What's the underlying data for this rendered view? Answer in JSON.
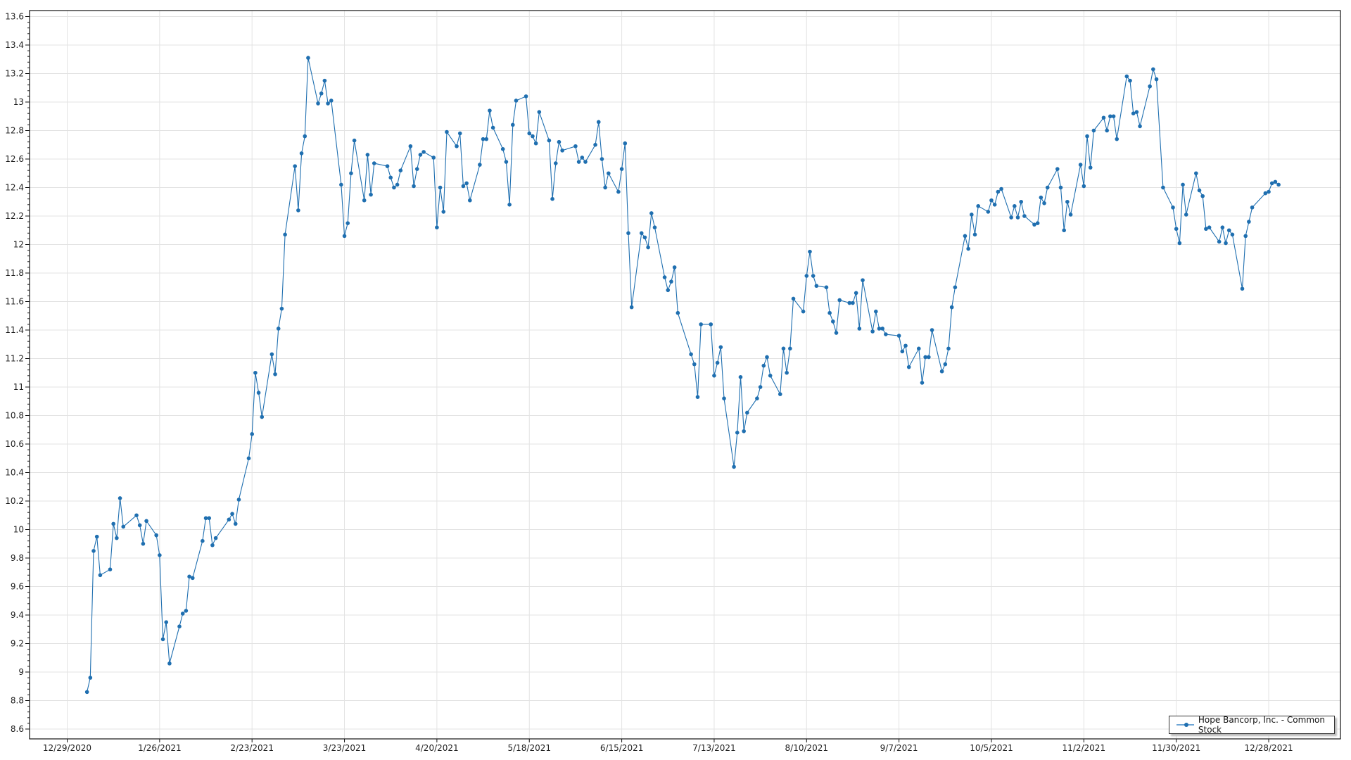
{
  "chart_data": {
    "type": "line",
    "title": "",
    "xlabel": "",
    "ylabel": "",
    "ylim": [
      8.6,
      13.6
    ],
    "y_ticks": [
      "8.6",
      "8.8",
      "9",
      "9.2",
      "9.4",
      "9.6",
      "9.8",
      "10",
      "10.2",
      "10.4",
      "10.6",
      "10.8",
      "11",
      "11.2",
      "11.4",
      "11.6",
      "11.8",
      "12",
      "12.2",
      "12.4",
      "12.6",
      "12.8",
      "13",
      "13.2",
      "13.4",
      "13.6"
    ],
    "x_ticks": [
      "12/29/2020",
      "1/26/2021",
      "2/23/2021",
      "3/23/2021",
      "4/20/2021",
      "5/18/2021",
      "6/15/2021",
      "7/13/2021",
      "8/10/2021",
      "9/7/2021",
      "10/5/2021",
      "11/2/2021",
      "11/30/2021",
      "12/28/2021"
    ],
    "grid": true,
    "legend_position": "bottom-right",
    "series": [
      {
        "name": "Hope Bancorp, Inc. - Common Stock",
        "color": "#1f6fb0",
        "points": [
          [
            "1/4/2021",
            8.86
          ],
          [
            "1/5/2021",
            8.96
          ],
          [
            "1/6/2021",
            9.85
          ],
          [
            "1/7/2021",
            9.95
          ],
          [
            "1/8/2021",
            9.68
          ],
          [
            "1/11/2021",
            9.72
          ],
          [
            "1/12/2021",
            10.04
          ],
          [
            "1/13/2021",
            9.94
          ],
          [
            "1/14/2021",
            10.22
          ],
          [
            "1/15/2021",
            10.02
          ],
          [
            "1/19/2021",
            10.1
          ],
          [
            "1/20/2021",
            10.03
          ],
          [
            "1/21/2021",
            9.9
          ],
          [
            "1/22/2021",
            10.06
          ],
          [
            "1/25/2021",
            9.96
          ],
          [
            "1/26/2021",
            9.82
          ],
          [
            "1/27/2021",
            9.23
          ],
          [
            "1/28/2021",
            9.35
          ],
          [
            "1/29/2021",
            9.06
          ],
          [
            "2/1/2021",
            9.32
          ],
          [
            "2/2/2021",
            9.41
          ],
          [
            "2/3/2021",
            9.43
          ],
          [
            "2/4/2021",
            9.67
          ],
          [
            "2/5/2021",
            9.66
          ],
          [
            "2/8/2021",
            9.92
          ],
          [
            "2/9/2021",
            10.08
          ],
          [
            "2/10/2021",
            10.08
          ],
          [
            "2/11/2021",
            9.89
          ],
          [
            "2/12/2021",
            9.94
          ],
          [
            "2/16/2021",
            10.07
          ],
          [
            "2/17/2021",
            10.11
          ],
          [
            "2/18/2021",
            10.04
          ],
          [
            "2/19/2021",
            10.21
          ],
          [
            "2/22/2021",
            10.5
          ],
          [
            "2/23/2021",
            10.67
          ],
          [
            "2/24/2021",
            11.1
          ],
          [
            "2/25/2021",
            10.96
          ],
          [
            "2/26/2021",
            10.79
          ],
          [
            "3/1/2021",
            11.23
          ],
          [
            "3/2/2021",
            11.09
          ],
          [
            "3/3/2021",
            11.41
          ],
          [
            "3/4/2021",
            11.55
          ],
          [
            "3/5/2021",
            12.07
          ],
          [
            "3/8/2021",
            12.55
          ],
          [
            "3/9/2021",
            12.24
          ],
          [
            "3/10/2021",
            12.64
          ],
          [
            "3/11/2021",
            12.76
          ],
          [
            "3/12/2021",
            13.31
          ],
          [
            "3/15/2021",
            12.99
          ],
          [
            "3/16/2021",
            13.06
          ],
          [
            "3/17/2021",
            13.15
          ],
          [
            "3/18/2021",
            12.99
          ],
          [
            "3/19/2021",
            13.01
          ],
          [
            "3/22/2021",
            12.42
          ],
          [
            "3/23/2021",
            12.06
          ],
          [
            "3/24/2021",
            12.15
          ],
          [
            "3/25/2021",
            12.5
          ],
          [
            "3/26/2021",
            12.73
          ],
          [
            "3/29/2021",
            12.31
          ],
          [
            "3/30/2021",
            12.63
          ],
          [
            "3/31/2021",
            12.35
          ],
          [
            "4/1/2021",
            12.57
          ],
          [
            "4/5/2021",
            12.55
          ],
          [
            "4/6/2021",
            12.47
          ],
          [
            "4/7/2021",
            12.4
          ],
          [
            "4/8/2021",
            12.42
          ],
          [
            "4/9/2021",
            12.52
          ],
          [
            "4/12/2021",
            12.69
          ],
          [
            "4/13/2021",
            12.41
          ],
          [
            "4/14/2021",
            12.53
          ],
          [
            "4/15/2021",
            12.63
          ],
          [
            "4/16/2021",
            12.65
          ],
          [
            "4/19/2021",
            12.61
          ],
          [
            "4/20/2021",
            12.12
          ],
          [
            "4/21/2021",
            12.4
          ],
          [
            "4/22/2021",
            12.23
          ],
          [
            "4/23/2021",
            12.79
          ],
          [
            "4/26/2021",
            12.69
          ],
          [
            "4/27/2021",
            12.78
          ],
          [
            "4/28/2021",
            12.41
          ],
          [
            "4/29/2021",
            12.43
          ],
          [
            "4/30/2021",
            12.31
          ],
          [
            "5/3/2021",
            12.56
          ],
          [
            "5/4/2021",
            12.74
          ],
          [
            "5/5/2021",
            12.74
          ],
          [
            "5/6/2021",
            12.94
          ],
          [
            "5/7/2021",
            12.82
          ],
          [
            "5/10/2021",
            12.67
          ],
          [
            "5/11/2021",
            12.58
          ],
          [
            "5/12/2021",
            12.28
          ],
          [
            "5/13/2021",
            12.84
          ],
          [
            "5/14/2021",
            13.01
          ],
          [
            "5/17/2021",
            13.04
          ],
          [
            "5/18/2021",
            12.78
          ],
          [
            "5/19/2021",
            12.76
          ],
          [
            "5/20/2021",
            12.71
          ],
          [
            "5/21/2021",
            12.93
          ],
          [
            "5/24/2021",
            12.73
          ],
          [
            "5/25/2021",
            12.32
          ],
          [
            "5/26/2021",
            12.57
          ],
          [
            "5/27/2021",
            12.72
          ],
          [
            "5/28/2021",
            12.66
          ],
          [
            "6/1/2021",
            12.69
          ],
          [
            "6/2/2021",
            12.58
          ],
          [
            "6/3/2021",
            12.61
          ],
          [
            "6/4/2021",
            12.58
          ],
          [
            "6/7/2021",
            12.7
          ],
          [
            "6/8/2021",
            12.86
          ],
          [
            "6/9/2021",
            12.6
          ],
          [
            "6/10/2021",
            12.4
          ],
          [
            "6/11/2021",
            12.5
          ],
          [
            "6/14/2021",
            12.37
          ],
          [
            "6/15/2021",
            12.53
          ],
          [
            "6/16/2021",
            12.71
          ],
          [
            "6/17/2021",
            12.08
          ],
          [
            "6/18/2021",
            11.56
          ],
          [
            "6/21/2021",
            12.08
          ],
          [
            "6/22/2021",
            12.05
          ],
          [
            "6/23/2021",
            11.98
          ],
          [
            "6/24/2021",
            12.22
          ],
          [
            "6/25/2021",
            12.12
          ],
          [
            "6/28/2021",
            11.77
          ],
          [
            "6/29/2021",
            11.68
          ],
          [
            "6/30/2021",
            11.74
          ],
          [
            "7/1/2021",
            11.84
          ],
          [
            "7/2/2021",
            11.52
          ],
          [
            "7/6/2021",
            11.23
          ],
          [
            "7/7/2021",
            11.16
          ],
          [
            "7/8/2021",
            10.93
          ],
          [
            "7/9/2021",
            11.44
          ],
          [
            "7/12/2021",
            11.44
          ],
          [
            "7/13/2021",
            11.08
          ],
          [
            "7/14/2021",
            11.17
          ],
          [
            "7/15/2021",
            11.28
          ],
          [
            "7/16/2021",
            10.92
          ],
          [
            "7/19/2021",
            10.44
          ],
          [
            "7/20/2021",
            10.68
          ],
          [
            "7/21/2021",
            11.07
          ],
          [
            "7/22/2021",
            10.69
          ],
          [
            "7/23/2021",
            10.82
          ],
          [
            "7/26/2021",
            10.92
          ],
          [
            "7/27/2021",
            11.0
          ],
          [
            "7/28/2021",
            11.15
          ],
          [
            "7/29/2021",
            11.21
          ],
          [
            "7/30/2021",
            11.08
          ],
          [
            "8/2/2021",
            10.95
          ],
          [
            "8/3/2021",
            11.27
          ],
          [
            "8/4/2021",
            11.1
          ],
          [
            "8/5/2021",
            11.27
          ],
          [
            "8/6/2021",
            11.62
          ],
          [
            "8/9/2021",
            11.53
          ],
          [
            "8/10/2021",
            11.78
          ],
          [
            "8/11/2021",
            11.95
          ],
          [
            "8/12/2021",
            11.78
          ],
          [
            "8/13/2021",
            11.71
          ],
          [
            "8/16/2021",
            11.7
          ],
          [
            "8/17/2021",
            11.52
          ],
          [
            "8/18/2021",
            11.46
          ],
          [
            "8/19/2021",
            11.38
          ],
          [
            "8/20/2021",
            11.61
          ],
          [
            "8/23/2021",
            11.59
          ],
          [
            "8/24/2021",
            11.59
          ],
          [
            "8/25/2021",
            11.66
          ],
          [
            "8/26/2021",
            11.41
          ],
          [
            "8/27/2021",
            11.75
          ],
          [
            "8/30/2021",
            11.39
          ],
          [
            "8/31/2021",
            11.53
          ],
          [
            "9/1/2021",
            11.41
          ],
          [
            "9/2/2021",
            11.41
          ],
          [
            "9/3/2021",
            11.37
          ],
          [
            "9/7/2021",
            11.36
          ],
          [
            "9/8/2021",
            11.25
          ],
          [
            "9/9/2021",
            11.29
          ],
          [
            "9/10/2021",
            11.14
          ],
          [
            "9/13/2021",
            11.27
          ],
          [
            "9/14/2021",
            11.03
          ],
          [
            "9/15/2021",
            11.21
          ],
          [
            "9/16/2021",
            11.21
          ],
          [
            "9/17/2021",
            11.4
          ],
          [
            "9/20/2021",
            11.11
          ],
          [
            "9/21/2021",
            11.16
          ],
          [
            "9/22/2021",
            11.27
          ],
          [
            "9/23/2021",
            11.56
          ],
          [
            "9/24/2021",
            11.7
          ],
          [
            "9/27/2021",
            12.06
          ],
          [
            "9/28/2021",
            11.97
          ],
          [
            "9/29/2021",
            12.21
          ],
          [
            "9/30/2021",
            12.07
          ],
          [
            "10/1/2021",
            12.27
          ],
          [
            "10/4/2021",
            12.23
          ],
          [
            "10/5/2021",
            12.31
          ],
          [
            "10/6/2021",
            12.28
          ],
          [
            "10/7/2021",
            12.37
          ],
          [
            "10/8/2021",
            12.39
          ],
          [
            "10/11/2021",
            12.19
          ],
          [
            "10/12/2021",
            12.27
          ],
          [
            "10/13/2021",
            12.19
          ],
          [
            "10/14/2021",
            12.3
          ],
          [
            "10/15/2021",
            12.2
          ],
          [
            "10/18/2021",
            12.14
          ],
          [
            "10/19/2021",
            12.15
          ],
          [
            "10/20/2021",
            12.33
          ],
          [
            "10/21/2021",
            12.29
          ],
          [
            "10/22/2021",
            12.4
          ],
          [
            "10/25/2021",
            12.53
          ],
          [
            "10/26/2021",
            12.4
          ],
          [
            "10/27/2021",
            12.1
          ],
          [
            "10/28/2021",
            12.3
          ],
          [
            "10/29/2021",
            12.21
          ],
          [
            "11/1/2021",
            12.56
          ],
          [
            "11/2/2021",
            12.41
          ],
          [
            "11/3/2021",
            12.76
          ],
          [
            "11/4/2021",
            12.54
          ],
          [
            "11/5/2021",
            12.8
          ],
          [
            "11/8/2021",
            12.89
          ],
          [
            "11/9/2021",
            12.8
          ],
          [
            "11/10/2021",
            12.9
          ],
          [
            "11/11/2021",
            12.9
          ],
          [
            "11/12/2021",
            12.74
          ],
          [
            "11/15/2021",
            13.18
          ],
          [
            "11/16/2021",
            13.15
          ],
          [
            "11/17/2021",
            12.92
          ],
          [
            "11/18/2021",
            12.93
          ],
          [
            "11/19/2021",
            12.83
          ],
          [
            "11/22/2021",
            13.11
          ],
          [
            "11/23/2021",
            13.23
          ],
          [
            "11/24/2021",
            13.16
          ],
          [
            "11/26/2021",
            12.4
          ],
          [
            "11/29/2021",
            12.26
          ],
          [
            "11/30/2021",
            12.11
          ],
          [
            "12/1/2021",
            12.01
          ],
          [
            "12/2/2021",
            12.42
          ],
          [
            "12/3/2021",
            12.21
          ],
          [
            "12/6/2021",
            12.5
          ],
          [
            "12/7/2021",
            12.38
          ],
          [
            "12/8/2021",
            12.34
          ],
          [
            "12/9/2021",
            12.11
          ],
          [
            "12/10/2021",
            12.12
          ],
          [
            "12/13/2021",
            12.02
          ],
          [
            "12/14/2021",
            12.12
          ],
          [
            "12/15/2021",
            12.01
          ],
          [
            "12/16/2021",
            12.1
          ],
          [
            "12/17/2021",
            12.07
          ],
          [
            "12/20/2021",
            11.69
          ],
          [
            "12/21/2021",
            12.06
          ],
          [
            "12/22/2021",
            12.16
          ],
          [
            "12/23/2021",
            12.26
          ],
          [
            "12/27/2021",
            12.36
          ],
          [
            "12/28/2021",
            12.37
          ],
          [
            "12/29/2021",
            12.43
          ],
          [
            "12/30/2021",
            12.44
          ],
          [
            "12/31/2021",
            12.42
          ]
        ]
      }
    ]
  }
}
